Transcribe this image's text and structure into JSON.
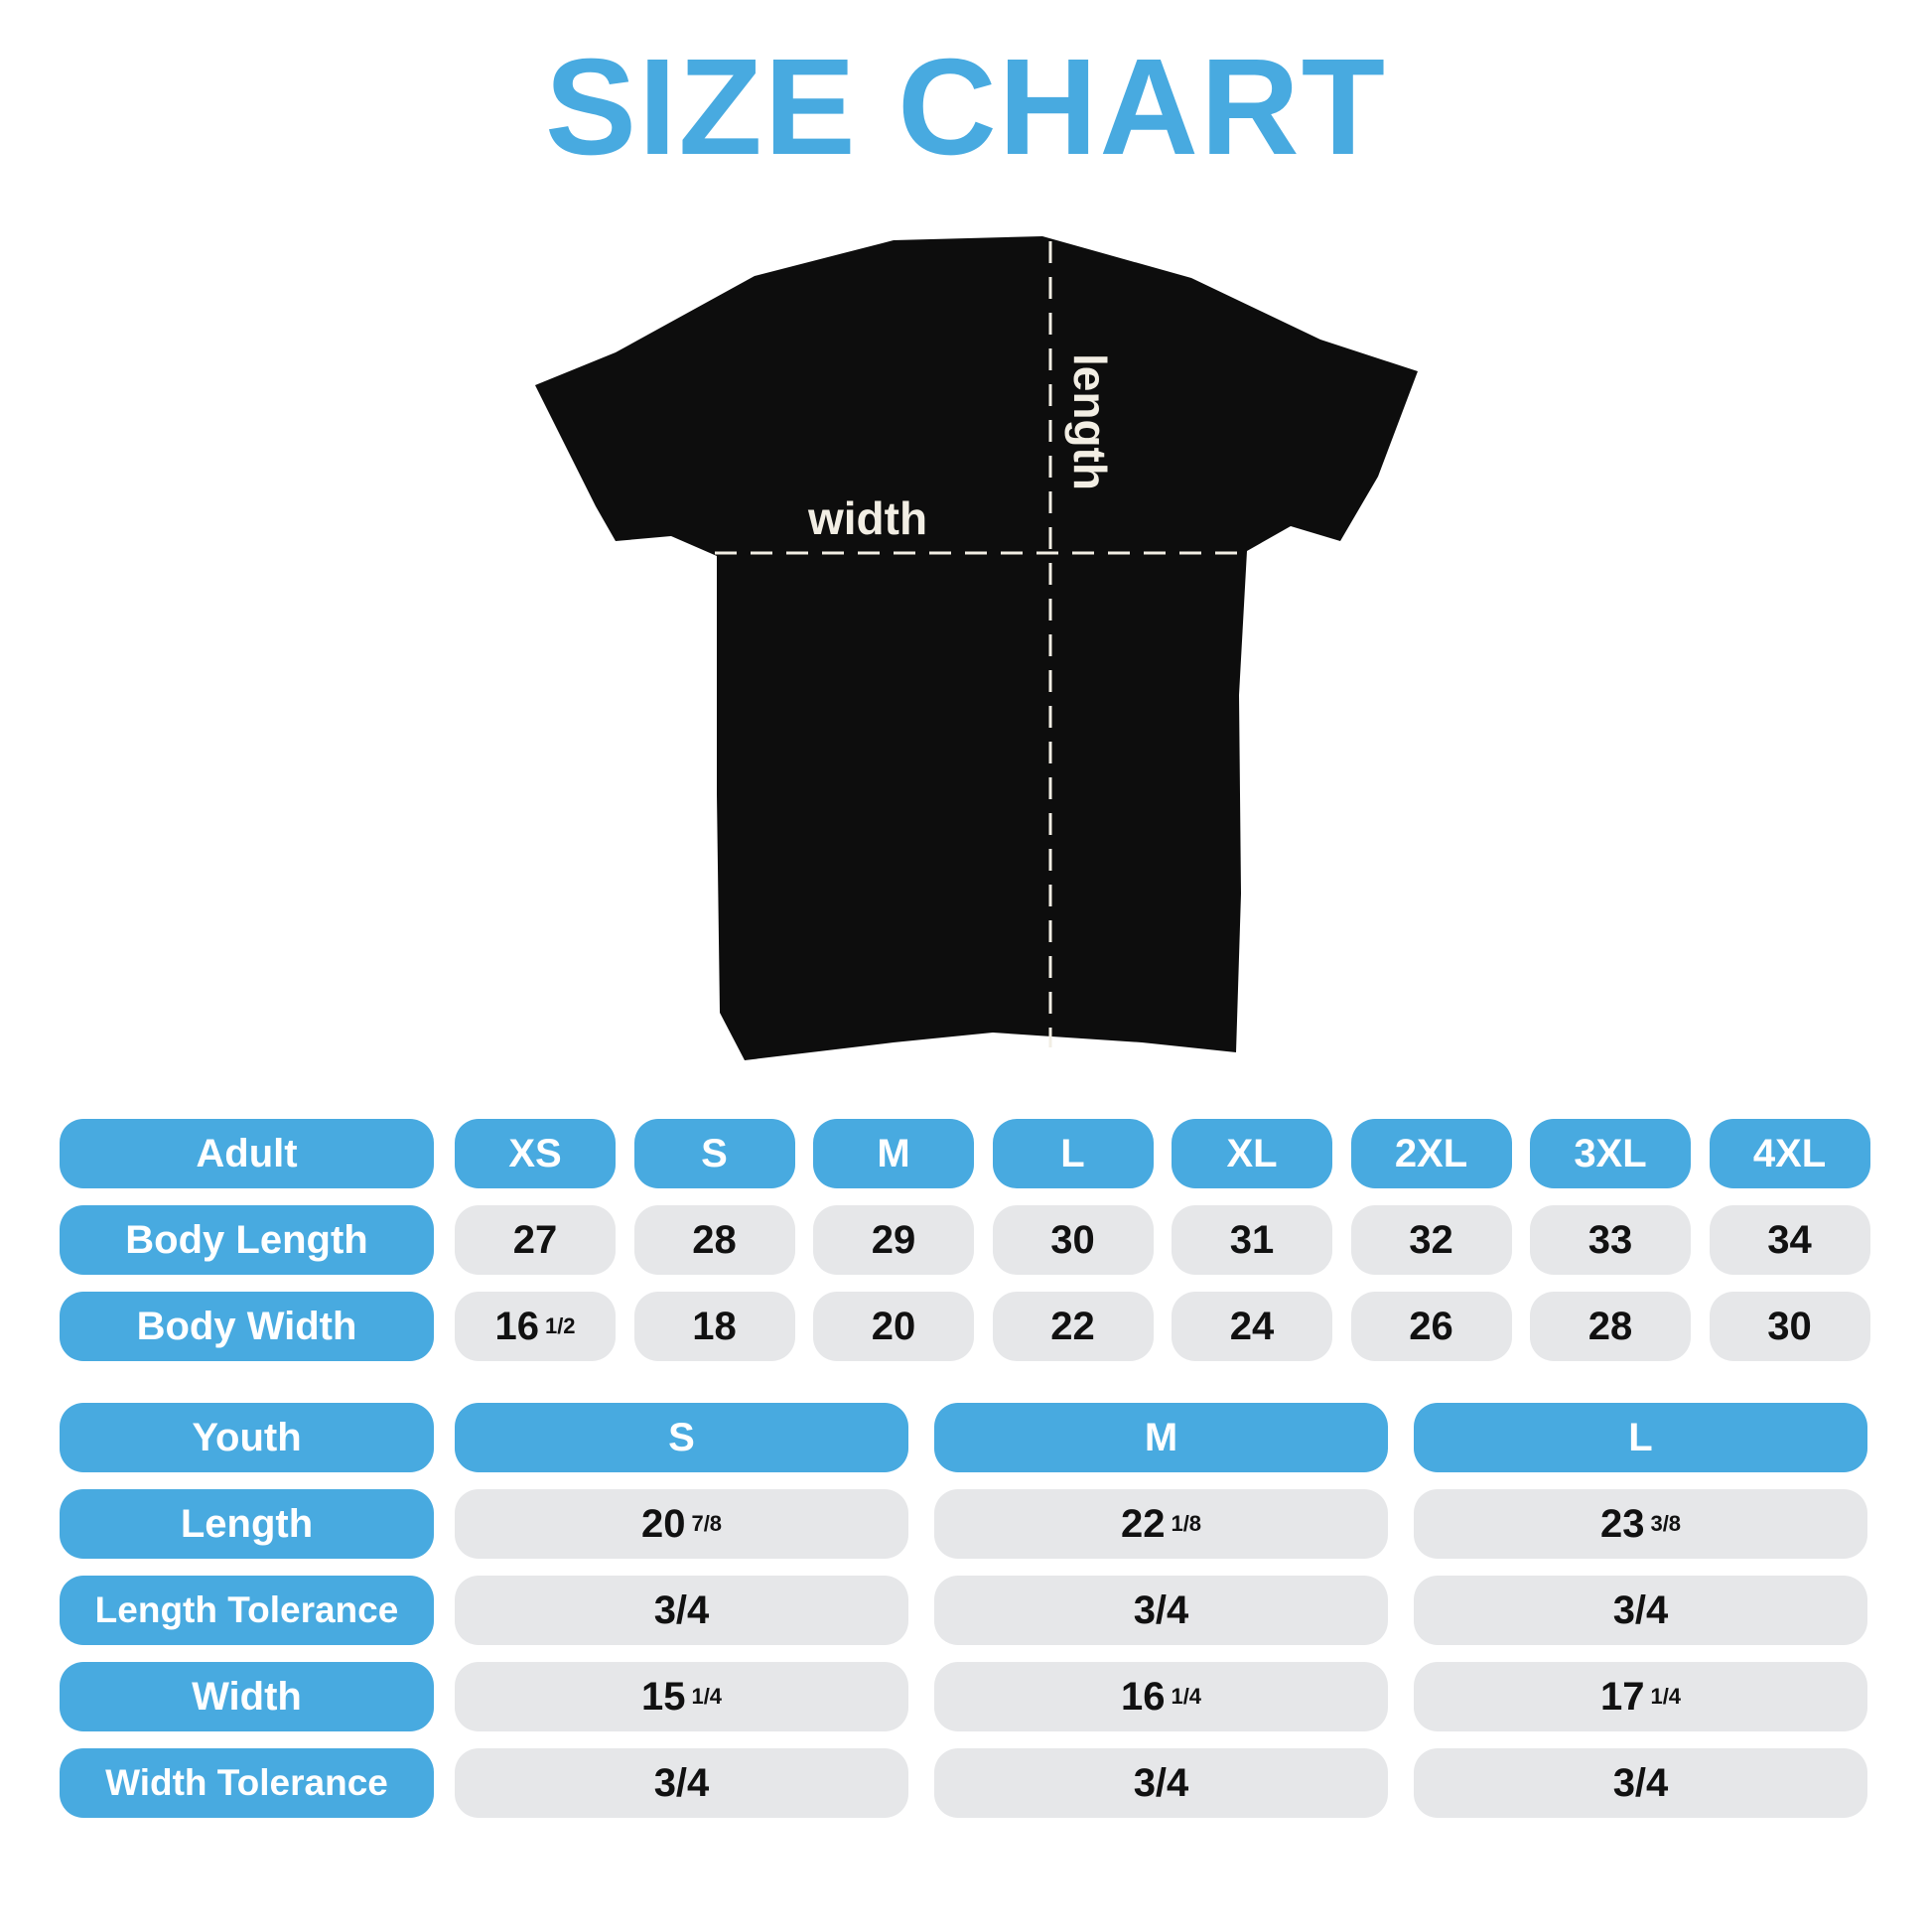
{
  "title": "SIZE CHART",
  "shirt": {
    "width_label": "width",
    "length_label": "length",
    "color": "#0d0d0d"
  },
  "colors": {
    "accent": "#48aae0",
    "cell": "#e6e7e9"
  },
  "adult": {
    "header": "Adult",
    "sizes": [
      "XS",
      "S",
      "M",
      "L",
      "XL",
      "2XL",
      "3XL",
      "4XL"
    ],
    "rows": [
      {
        "label": "Body Length",
        "values": [
          [
            "27",
            ""
          ],
          [
            "28",
            ""
          ],
          [
            "29",
            ""
          ],
          [
            "30",
            ""
          ],
          [
            "31",
            ""
          ],
          [
            "32",
            ""
          ],
          [
            "33",
            ""
          ],
          [
            "34",
            ""
          ]
        ]
      },
      {
        "label": "Body Width",
        "values": [
          [
            "16",
            "1/2"
          ],
          [
            "18",
            ""
          ],
          [
            "20",
            ""
          ],
          [
            "22",
            ""
          ],
          [
            "24",
            ""
          ],
          [
            "26",
            ""
          ],
          [
            "28",
            ""
          ],
          [
            "30",
            ""
          ]
        ]
      }
    ]
  },
  "youth": {
    "header": "Youth",
    "sizes": [
      "S",
      "M",
      "L"
    ],
    "rows": [
      {
        "label": "Length",
        "values": [
          [
            "20",
            "7/8"
          ],
          [
            "22",
            "1/8"
          ],
          [
            "23",
            "3/8"
          ]
        ]
      },
      {
        "label": "Length Tolerance",
        "values": [
          [
            "3/4",
            ""
          ],
          [
            "3/4",
            ""
          ],
          [
            "3/4",
            ""
          ]
        ]
      },
      {
        "label": "Width",
        "values": [
          [
            "15",
            "1/4"
          ],
          [
            "16",
            "1/4"
          ],
          [
            "17",
            "1/4"
          ]
        ]
      },
      {
        "label": "Width Tolerance",
        "values": [
          [
            "3/4",
            ""
          ],
          [
            "3/4",
            ""
          ],
          [
            "3/4",
            ""
          ]
        ]
      }
    ]
  }
}
